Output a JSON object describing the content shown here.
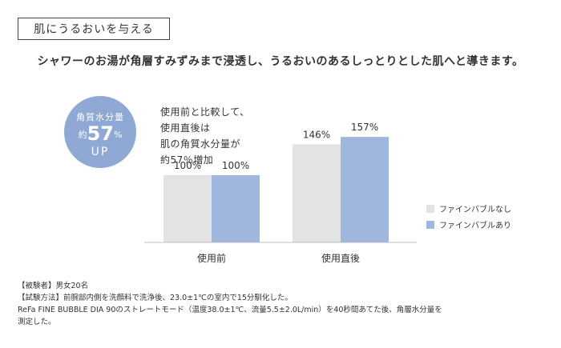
{
  "header": {
    "title": "肌にうるおいを与える",
    "headline": "シャワーのお湯が角層すみずみまで浸透し、うるおいのあるしっとりとした肌へと導きます。"
  },
  "badge": {
    "line1": "角質水分量",
    "prefix": "約",
    "value": "57",
    "unit": "%",
    "line3": "UP"
  },
  "comparison_text": [
    "使用前と比較して、",
    "使用直後は",
    "肌の角質水分量が",
    "約57％増加"
  ],
  "colors": {
    "without": "#e3e3e4",
    "with": "#9fb7dd",
    "badge": "#8fa9d4"
  },
  "chart_data": {
    "type": "bar",
    "categories": [
      "使用前",
      "使用直後"
    ],
    "series": [
      {
        "name": "ファインバブルなし",
        "values": [
          100,
          146
        ],
        "labels": [
          "100%",
          "146%"
        ]
      },
      {
        "name": "ファインバブルあり",
        "values": [
          100,
          157
        ],
        "labels": [
          "100%",
          "157%"
        ]
      }
    ],
    "ylim": [
      0,
      200
    ],
    "title": "",
    "xlabel": "",
    "ylabel": ""
  },
  "notes": [
    "【被験者】男女20名",
    "【試験方法】前腕部内側を洗顔料で洗浄後、23.0±1℃の室内で15分馴化した。",
    "ReFa FINE BUBBLE DIA 90のストレートモード（温度38.0±1℃、流量5.5±2.0L/min）を40秒間あてた後、角層水分量を",
    "測定した。"
  ]
}
